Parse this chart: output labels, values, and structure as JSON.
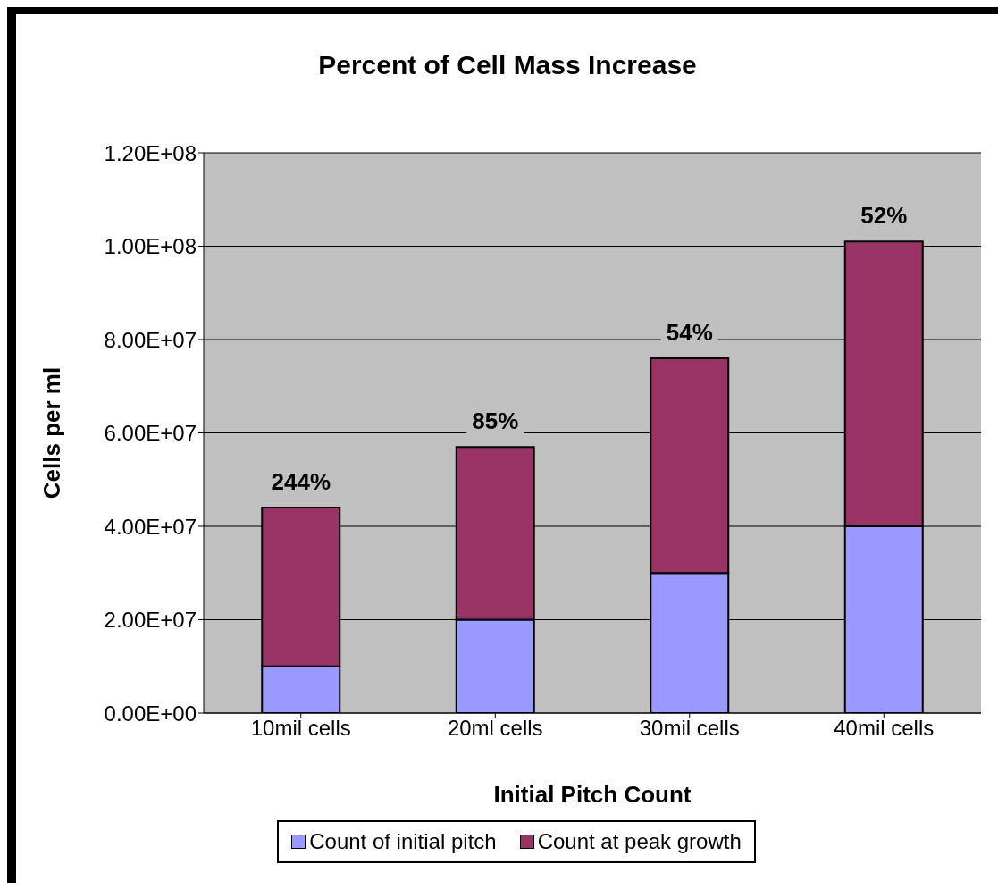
{
  "chart_data": {
    "type": "bar",
    "title": "Percent of Cell Mass Increase",
    "xlabel": "Initial Pitch Count",
    "ylabel": "Cells per ml",
    "categories": [
      "10mil cells",
      "20ml cells",
      "30mil cells",
      "40mil cells"
    ],
    "series": [
      {
        "name": "Count of initial pitch",
        "color": "#9999ff",
        "values": [
          10000000.0,
          20000000.0,
          30000000.0,
          40000000.0
        ]
      },
      {
        "name": "Count at peak growth",
        "color": "#993366",
        "values": [
          34000000.0,
          37000000.0,
          46000000.0,
          61000000.0
        ]
      }
    ],
    "stacked": true,
    "annotations": [
      {
        "text": "244%",
        "x": "10mil cells",
        "y": 44000000.0
      },
      {
        "text": "85%",
        "x": "20ml cells",
        "y": 57000000.0
      },
      {
        "text": "54%",
        "x": "30mil cells",
        "y": 76000000.0
      },
      {
        "text": "52%",
        "x": "40mil cells",
        "y": 101000000.0
      }
    ],
    "ylim": [
      0,
      120000000.0
    ],
    "yticks": [
      {
        "value": 0,
        "label": "0.00E+00"
      },
      {
        "value": 20000000.0,
        "label": "2.00E+07"
      },
      {
        "value": 40000000.0,
        "label": "4.00E+07"
      },
      {
        "value": 60000000.0,
        "label": "6.00E+07"
      },
      {
        "value": 80000000.0,
        "label": "8.00E+07"
      },
      {
        "value": 100000000.0,
        "label": "1.00E+08"
      },
      {
        "value": 120000000.0,
        "label": "1.20E+08"
      }
    ],
    "grid": "y",
    "legend": "bottom"
  }
}
